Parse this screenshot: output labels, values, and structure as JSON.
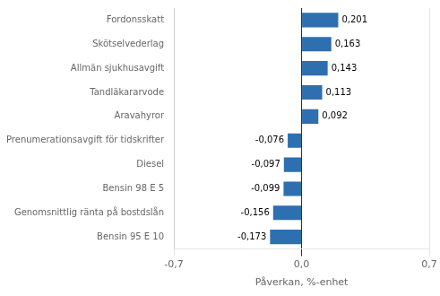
{
  "chart_data": {
    "type": "bar",
    "orientation": "horizontal",
    "categories": [
      "Bensin 95 E 10",
      "Genomsnittlig ränta på bostdslån",
      "Bensin 98 E 5",
      "Diesel",
      "Prenumerationsavgift för tidskrifter",
      "Aravahyror",
      "Tandläkararvode",
      "Allmän sjukhusavgift",
      "Skötselvederlag",
      "Fordonsskatt"
    ],
    "values": [
      -0.173,
      -0.156,
      -0.099,
      -0.097,
      -0.076,
      0.092,
      0.113,
      0.143,
      0.163,
      0.201
    ],
    "value_labels": [
      "-0,173",
      "-0,156",
      "-0,099",
      "-0,097",
      "-0,076",
      "0,092",
      "0,113",
      "0,143",
      "0,163",
      "0,201"
    ],
    "data_labels": true,
    "color": "#2e6faf",
    "xlabel": "Påverkan, %-enhet",
    "xlim": [
      -0.7,
      0.7
    ],
    "xticks": [
      {
        "value": -0.7,
        "label": "-0,7"
      },
      {
        "value": 0,
        "label": "0,0"
      },
      {
        "value": 0.7,
        "label": "0,7"
      }
    ],
    "grid": true
  }
}
